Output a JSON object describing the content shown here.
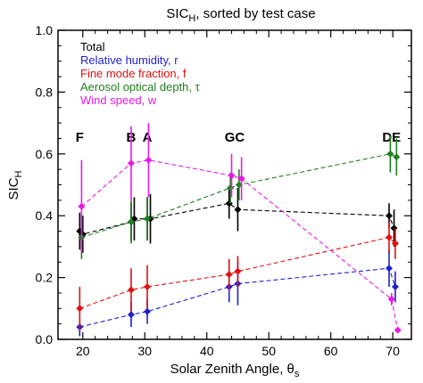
{
  "chart_data": {
    "type": "scatter",
    "title_main": "SIC",
    "title_sub": "H",
    "title_rest": ", sorted by test case",
    "xlabel_main": "Solar Zenith Angle, θ",
    "xlabel_sub": "s",
    "ylabel_main": "SIC",
    "ylabel_sub": "H",
    "xlim": [
      16,
      73
    ],
    "ylim": [
      0.0,
      1.0
    ],
    "xticks": [
      20,
      30,
      40,
      50,
      60,
      70
    ],
    "yticks": [
      0.0,
      0.2,
      0.4,
      0.6,
      0.8,
      1.0
    ],
    "ytick_labels": [
      "0.0",
      "0.2",
      "0.4",
      "0.6",
      "0.8",
      "1.0"
    ],
    "legend_position": "top-left",
    "case_labels": [
      {
        "text": "F",
        "x": 19.5
      },
      {
        "text": "B",
        "x": 27.8
      },
      {
        "text": "A",
        "x": 30.4
      },
      {
        "text": "GC",
        "x": 44.5
      },
      {
        "text": "DE",
        "x": 69.8
      }
    ],
    "series": [
      {
        "name": "Total",
        "color": "#000000",
        "x": [
          19.5,
          20.0,
          27.8,
          28.3,
          30.4,
          30.9,
          43.6,
          45.0,
          69.4,
          70.2
        ],
        "y": [
          0.35,
          0.34,
          0.38,
          0.39,
          0.39,
          0.39,
          0.44,
          0.42,
          0.4,
          0.36
        ],
        "err": [
          0.06,
          0.06,
          0.06,
          0.07,
          0.07,
          0.08,
          0.05,
          0.07,
          0.04,
          0.06
        ]
      },
      {
        "name": "Relative humidity, r",
        "color": "#1f1fd0",
        "x": [
          19.5,
          27.8,
          30.4,
          43.6,
          45.0,
          69.4,
          70.4
        ],
        "y": [
          0.04,
          0.08,
          0.09,
          0.17,
          0.18,
          0.23,
          0.17
        ],
        "err": [
          0.03,
          0.04,
          0.04,
          0.05,
          0.07,
          0.06,
          0.05
        ]
      },
      {
        "name": "Fine mode fraction, f",
        "color": "#e01010",
        "x": [
          19.5,
          27.8,
          30.4,
          43.6,
          45.0,
          69.4,
          70.4
        ],
        "y": [
          0.1,
          0.16,
          0.17,
          0.21,
          0.22,
          0.33,
          0.31
        ],
        "err": [
          0.07,
          0.07,
          0.07,
          0.05,
          0.05,
          0.05,
          0.05
        ]
      },
      {
        "name": "Aerosol optical depth, τ",
        "color": "#1f7f1f",
        "x": [
          19.8,
          27.8,
          30.4,
          43.8,
          45.2,
          69.6,
          70.6
        ],
        "y": [
          0.33,
          0.38,
          0.39,
          0.49,
          0.5,
          0.6,
          0.59
        ],
        "err": [
          0.07,
          0.07,
          0.07,
          0.05,
          0.05,
          0.06,
          0.06
        ]
      },
      {
        "name": "Wind speed, w",
        "color": "#e81ae8",
        "x": [
          19.8,
          27.8,
          30.6,
          44.0,
          45.6,
          69.8,
          70.8
        ],
        "y": [
          0.43,
          0.57,
          0.58,
          0.53,
          0.52,
          0.13,
          0.03
        ],
        "err": [
          0.15,
          0.12,
          0.12,
          0.07,
          0.07,
          0.02,
          0.01
        ]
      }
    ]
  }
}
